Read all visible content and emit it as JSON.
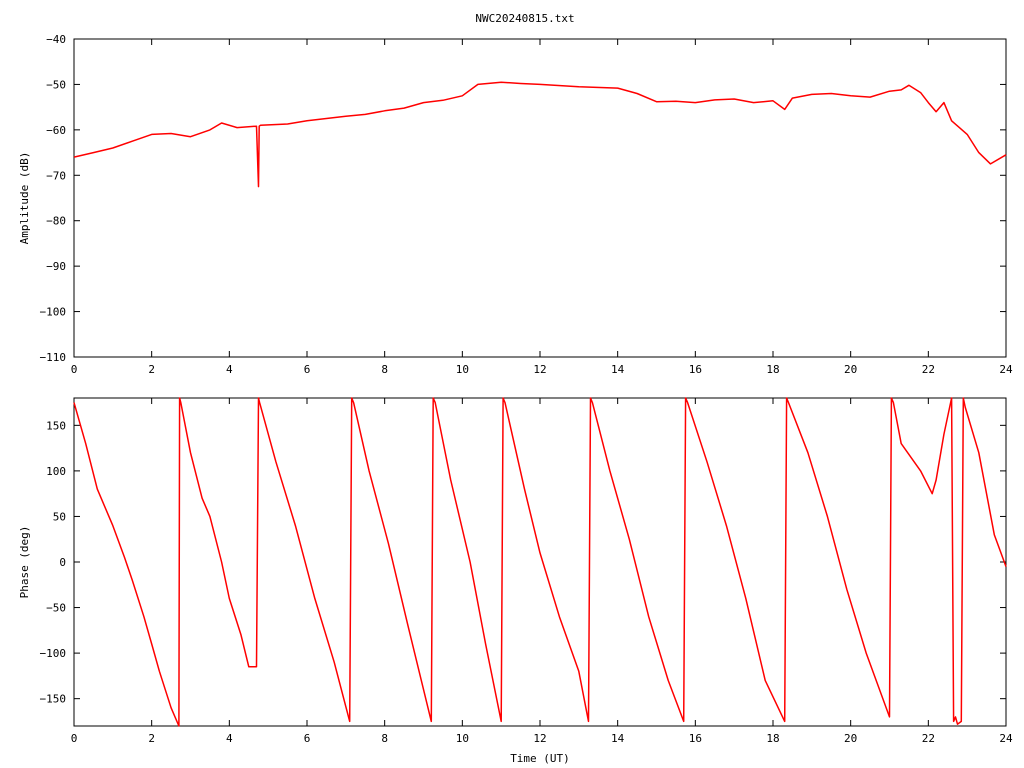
{
  "title": "NWC20240815.txt",
  "chart_data": [
    {
      "type": "line",
      "title": "NWC20240815.txt",
      "xlabel": "",
      "ylabel": "Amplitude (dB)",
      "xlim": [
        0,
        24
      ],
      "ylim": [
        -110,
        -40
      ],
      "xticks": [
        0,
        2,
        4,
        6,
        8,
        10,
        12,
        14,
        16,
        18,
        20,
        22,
        24
      ],
      "yticks": [
        -110,
        -100,
        -90,
        -80,
        -70,
        -60,
        -50,
        -40
      ],
      "grid": false,
      "color": "#ff0000",
      "series": [
        {
          "x": [
            0,
            0.5,
            1,
            1.5,
            2,
            2.5,
            3,
            3.5,
            3.8,
            4.2,
            4.7,
            4.75,
            4.77,
            4.8,
            5.5,
            6,
            7,
            7.5,
            8,
            8.5,
            9,
            9.5,
            10,
            10.4,
            11,
            11.5,
            12,
            13,
            14,
            14.5,
            15,
            15.5,
            16,
            16.5,
            17,
            17.5,
            18,
            18.3,
            18.5,
            19,
            19.5,
            20,
            20.5,
            21,
            21.3,
            21.5,
            21.8,
            22,
            22.2,
            22.4,
            22.6,
            23,
            23.3,
            23.6,
            24
          ],
          "y": [
            -66,
            -65,
            -64,
            -62.5,
            -61,
            -60.8,
            -61.5,
            -60,
            -58.5,
            -59.5,
            -59.2,
            -72.5,
            -59.2,
            -59,
            -58.7,
            -58,
            -57,
            -56.6,
            -55.8,
            -55.2,
            -54,
            -53.5,
            -52.5,
            -50,
            -49.5,
            -49.8,
            -50,
            -50.5,
            -50.8,
            -52,
            -53.8,
            -53.7,
            -54,
            -53.4,
            -53.2,
            -54,
            -53.6,
            -55.5,
            -53,
            -52.2,
            -52,
            -52.5,
            -52.8,
            -51.5,
            -51.2,
            -50.2,
            -51.8,
            -54,
            -56,
            -54,
            -58,
            -61,
            -65,
            -67.5,
            -65.5
          ]
        }
      ]
    },
    {
      "type": "line",
      "title": "",
      "xlabel": "Time (UT)",
      "ylabel": "Phase (deg)",
      "xlim": [
        0,
        24
      ],
      "ylim": [
        -180,
        180
      ],
      "xticks": [
        0,
        2,
        4,
        6,
        8,
        10,
        12,
        14,
        16,
        18,
        20,
        22,
        24
      ],
      "yticks": [
        -150,
        -100,
        -50,
        0,
        50,
        100,
        150
      ],
      "grid": false,
      "color": "#ff0000",
      "series": [
        {
          "x": [
            0,
            0.3,
            0.6,
            1,
            1.3,
            1.5,
            1.8,
            2,
            2.2,
            2.5,
            2.7,
            2.72,
            2.75,
            3,
            3.3,
            3.5,
            3.8,
            4,
            4.3,
            4.5,
            4.7,
            4.75,
            4.78,
            5.2,
            5.7,
            6.2,
            6.7,
            7.1,
            7.15,
            7.2,
            7.6,
            8.1,
            8.6,
            9.2,
            9.25,
            9.3,
            9.7,
            10.2,
            10.6,
            11,
            11.05,
            11.1,
            11.6,
            12,
            12.5,
            13,
            13.25,
            13.3,
            13.35,
            13.8,
            14.3,
            14.8,
            15.3,
            15.7,
            15.75,
            15.8,
            16.3,
            16.8,
            17.3,
            17.8,
            18.3,
            18.35,
            18.4,
            18.9,
            19.4,
            19.9,
            20.4,
            21,
            21.05,
            21.1,
            21.3,
            21.8,
            22.1,
            22.2,
            22.4,
            22.6,
            22.65,
            22.7,
            22.75,
            22.85,
            22.9,
            22.95,
            23.3,
            23.7,
            24
          ],
          "y": [
            175,
            130,
            80,
            40,
            5,
            -20,
            -60,
            -90,
            -120,
            -160,
            -180,
            180,
            175,
            120,
            70,
            50,
            0,
            -40,
            -80,
            -115,
            -115,
            180,
            175,
            110,
            40,
            -40,
            -110,
            -175,
            180,
            175,
            100,
            20,
            -70,
            -175,
            180,
            175,
            90,
            0,
            -90,
            -175,
            180,
            175,
            80,
            10,
            -60,
            -120,
            -175,
            180,
            175,
            100,
            25,
            -60,
            -130,
            -175,
            180,
            175,
            110,
            40,
            -40,
            -130,
            -175,
            180,
            175,
            120,
            50,
            -30,
            -100,
            -170,
            180,
            175,
            130,
            100,
            75,
            90,
            140,
            180,
            -175,
            -170,
            -178,
            -175,
            180,
            170,
            120,
            30,
            -5
          ]
        }
      ]
    }
  ]
}
